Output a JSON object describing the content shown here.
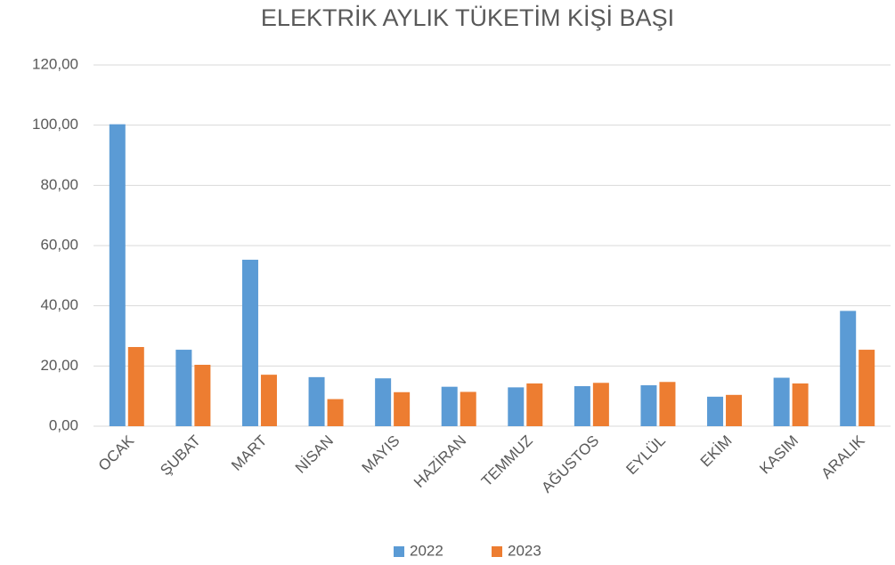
{
  "chart_data": {
    "type": "bar",
    "title": "ELEKTRİK AYLIK TÜKETİM KİŞİ BAŞI",
    "categories": [
      "OCAK",
      "ŞUBAT",
      "MART",
      "NİSAN",
      "MAYIS",
      "HAZİRAN",
      "TEMMUZ",
      "AĞUSTOS",
      "EYLÜL",
      "EKİM",
      "KASIM",
      "ARALIK"
    ],
    "series": [
      {
        "name": "2022",
        "color": "#5b9bd5",
        "values": [
          100.3,
          25.4,
          55.3,
          16.3,
          15.9,
          13.1,
          12.9,
          13.3,
          13.6,
          9.8,
          16.1,
          38.3
        ]
      },
      {
        "name": "2023",
        "color": "#ed7d31",
        "values": [
          26.3,
          20.4,
          17.1,
          9.0,
          11.3,
          11.4,
          14.2,
          14.4,
          14.7,
          10.4,
          14.2,
          25.4
        ]
      }
    ],
    "ylim": [
      0,
      120
    ],
    "yticks": [
      {
        "value": 0,
        "label": "0,00"
      },
      {
        "value": 20,
        "label": "20,00"
      },
      {
        "value": 40,
        "label": "40,00"
      },
      {
        "value": 60,
        "label": "60,00"
      },
      {
        "value": 80,
        "label": "80,00"
      },
      {
        "value": 100,
        "label": "100,00"
      },
      {
        "value": 120,
        "label": "120,00"
      }
    ],
    "grid": true,
    "legend": "bottom"
  }
}
